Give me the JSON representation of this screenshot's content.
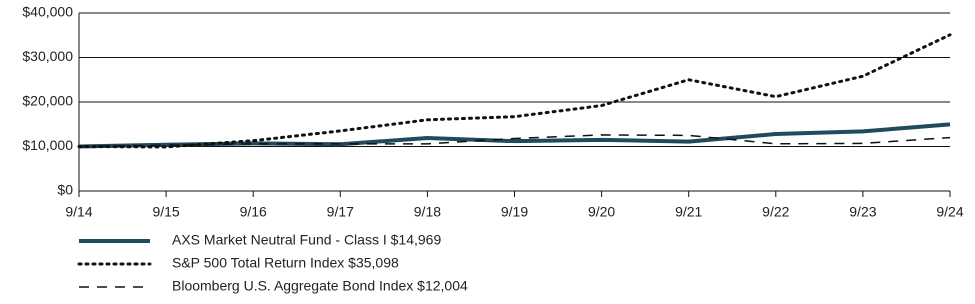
{
  "chart_data": {
    "type": "line",
    "categories": [
      "9/14",
      "9/15",
      "9/16",
      "9/17",
      "9/18",
      "9/19",
      "9/20",
      "9/21",
      "9/22",
      "9/23",
      "9/24"
    ],
    "series": [
      {
        "name": "AXS Market Neutral Fund - Class I $14,969",
        "color": "#1f4b5c",
        "line_style": "solid",
        "line_width": 4,
        "values": [
          10000,
          10400,
          10700,
          10500,
          11900,
          11200,
          11500,
          11100,
          12800,
          13400,
          14969
        ]
      },
      {
        "name": "S&P 500 Total Return Index $35,098",
        "color": "#111111",
        "line_style": "dotted",
        "line_width": 3,
        "values": [
          10000,
          9900,
          11300,
          13500,
          16000,
          16700,
          19200,
          25000,
          21200,
          25800,
          35098
        ]
      },
      {
        "name": "Bloomberg U.S. Aggregate Bond Index $12,004",
        "color": "#111111",
        "line_style": "dashed",
        "line_width": 1.5,
        "values": [
          10000,
          10300,
          10600,
          10600,
          10600,
          11800,
          12600,
          12500,
          10600,
          10700,
          12004
        ]
      }
    ],
    "ylim": [
      0,
      40000
    ],
    "yticks": [
      {
        "value": 0,
        "label": "$0"
      },
      {
        "value": 10000,
        "label": "$10,000"
      },
      {
        "value": 20000,
        "label": "$20,000"
      },
      {
        "value": 30000,
        "label": "$30,000"
      },
      {
        "value": 40000,
        "label": "$40,000"
      }
    ],
    "grid": true
  }
}
